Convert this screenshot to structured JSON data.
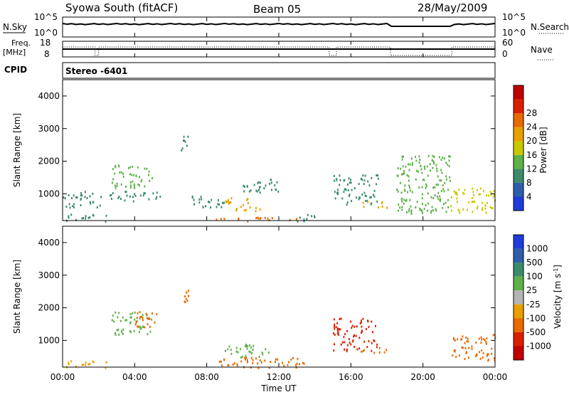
{
  "header": {
    "station": "Syowa South (fitACF)",
    "beam": "Beam 05",
    "date": "28/May/2009"
  },
  "status_panels": {
    "nsky": {
      "label": "N.Sky",
      "ticks": [
        "10^5",
        "10^0"
      ]
    },
    "nsearch": {
      "label": "N.Search",
      "ticks": [
        "10^5",
        "10^0"
      ]
    },
    "freq": {
      "label": "Freq.",
      "unit": "[MHz]",
      "ticks": [
        "18",
        "8"
      ]
    },
    "nave": {
      "label": "Nave",
      "ticks": [
        "60",
        "0"
      ]
    },
    "cpid": {
      "label": "CPID",
      "value": "Stereo -6401"
    }
  },
  "chart_data": [
    {
      "type": "heatmap",
      "name": "power",
      "ylabel": "Slant Range [km]",
      "xlabel": "",
      "xlim": [
        0,
        24
      ],
      "ylim": [
        180,
        4500
      ],
      "x_ticks": [
        0,
        4,
        8,
        12,
        16,
        20,
        24
      ],
      "y_ticks": [
        1000,
        2000,
        3000,
        4000
      ],
      "colorbar": {
        "label": "Power [dB]",
        "ticks": [
          "4",
          "8",
          "12",
          "16",
          "20",
          "24",
          "28"
        ],
        "colors": [
          "#1f3bd9",
          "#2d5fa8",
          "#3c8a6b",
          "#5fb04a",
          "#c8c800",
          "#e8a000",
          "#e86a00",
          "#d82000",
          "#c00000"
        ]
      },
      "echo_regions": [
        {
          "t0": 0.0,
          "t1": 2.5,
          "r0": 180,
          "r1": 400,
          "value": 8
        },
        {
          "t0": 0.0,
          "t1": 2.2,
          "r0": 600,
          "r1": 1100,
          "value": 8
        },
        {
          "t0": 2.7,
          "t1": 5.0,
          "r0": 1200,
          "r1": 1900,
          "value": 12
        },
        {
          "t0": 2.5,
          "t1": 5.5,
          "r0": 800,
          "r1": 1100,
          "value": 8
        },
        {
          "t0": 6.5,
          "t1": 7.0,
          "r0": 2200,
          "r1": 2800,
          "value": 8
        },
        {
          "t0": 7.0,
          "t1": 9.0,
          "r0": 600,
          "r1": 1000,
          "value": 8
        },
        {
          "t0": 8.5,
          "t1": 13.5,
          "r0": 180,
          "r1": 300,
          "value": 24
        },
        {
          "t0": 9.0,
          "t1": 11.0,
          "r0": 500,
          "r1": 900,
          "value": 20
        },
        {
          "t0": 10.0,
          "t1": 12.0,
          "r0": 1000,
          "r1": 1500,
          "value": 8
        },
        {
          "t0": 13.0,
          "t1": 14.5,
          "r0": 180,
          "r1": 400,
          "value": 8
        },
        {
          "t0": 15.0,
          "t1": 17.5,
          "r0": 700,
          "r1": 1600,
          "value": 8
        },
        {
          "t0": 16.5,
          "t1": 18.0,
          "r0": 600,
          "r1": 800,
          "value": 20
        },
        {
          "t0": 18.5,
          "t1": 21.5,
          "r0": 400,
          "r1": 2200,
          "value": 12
        },
        {
          "t0": 21.5,
          "t1": 24.0,
          "r0": 400,
          "r1": 1200,
          "value": 16
        }
      ]
    },
    {
      "type": "heatmap",
      "name": "velocity",
      "ylabel": "Slant Range [km]",
      "xlabel": "Time UT",
      "xlim": [
        0,
        24
      ],
      "ylim": [
        180,
        4500
      ],
      "x_ticks": [
        0,
        4,
        8,
        12,
        16,
        20,
        24
      ],
      "y_ticks": [
        1000,
        2000,
        3000,
        4000
      ],
      "colorbar": {
        "label": "Velocity [m s-1]",
        "ticks": [
          "1000",
          "500",
          "100",
          "25",
          "-25",
          "-100",
          "-500",
          "-1000"
        ],
        "colors": [
          "#1f3bd9",
          "#2d5fa8",
          "#3c8a6b",
          "#5fb04a",
          "#b4b4b4",
          "#e8a000",
          "#e86a00",
          "#d82000",
          "#c00000"
        ]
      },
      "echo_regions": [
        {
          "t0": 0.0,
          "t1": 2.5,
          "r0": 180,
          "r1": 400,
          "value": -25
        },
        {
          "t0": 2.7,
          "t1": 5.0,
          "r0": 1200,
          "r1": 1900,
          "value": 100
        },
        {
          "t0": 4.0,
          "t1": 5.5,
          "r0": 1400,
          "r1": 1900,
          "value": -100
        },
        {
          "t0": 6.5,
          "t1": 7.0,
          "r0": 2200,
          "r1": 2800,
          "value": -100
        },
        {
          "t0": 8.5,
          "t1": 13.5,
          "r0": 180,
          "r1": 500,
          "value": -100
        },
        {
          "t0": 9.0,
          "t1": 11.5,
          "r0": 500,
          "r1": 900,
          "value": 100
        },
        {
          "t0": 15.0,
          "t1": 17.5,
          "r0": 700,
          "r1": 1700,
          "value": -500
        },
        {
          "t0": 16.5,
          "t1": 18.0,
          "r0": 600,
          "r1": 800,
          "value": -100
        },
        {
          "t0": 21.5,
          "t1": 24.0,
          "r0": 400,
          "r1": 1200,
          "value": -100
        }
      ]
    }
  ],
  "time_labels": [
    "00:00",
    "04:00",
    "08:00",
    "12:00",
    "16:00",
    "20:00",
    "00:00"
  ],
  "range_labels": [
    "1000",
    "2000",
    "3000",
    "4000"
  ]
}
